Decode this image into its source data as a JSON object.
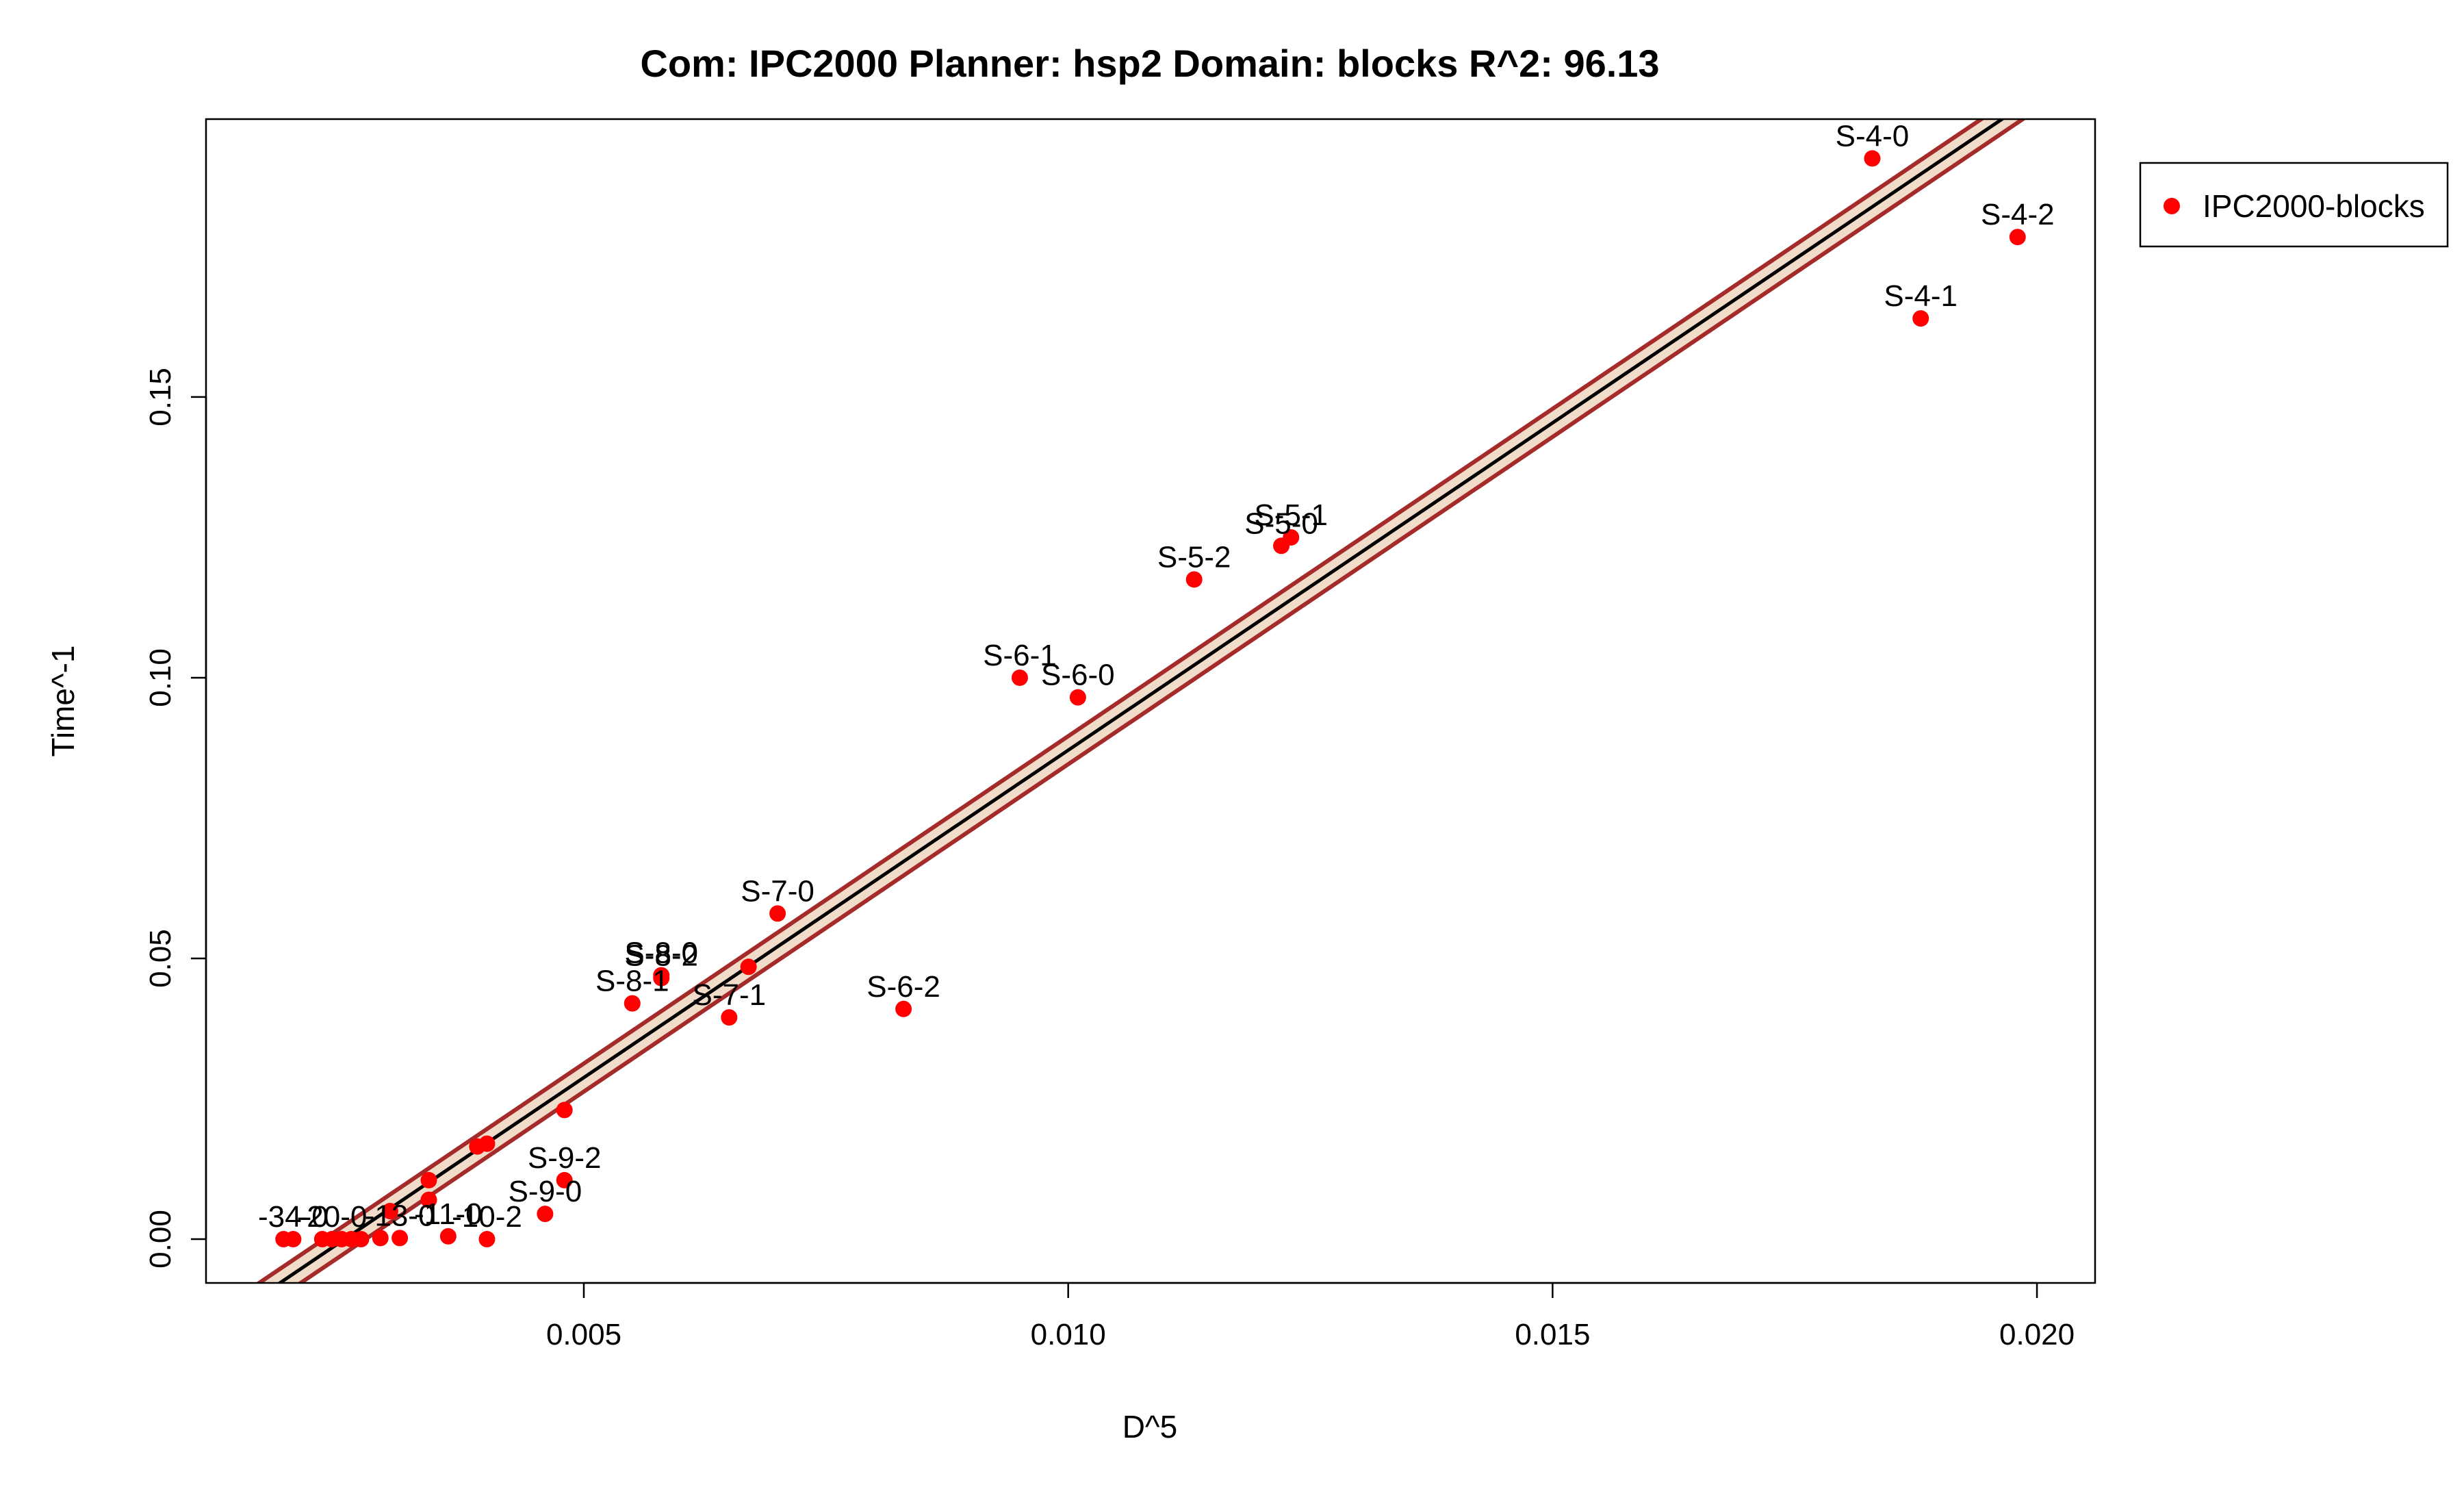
{
  "chart_data": {
    "type": "scatter",
    "title": "Com: IPC2000 Planner: hsp2 Domain: blocks R^2: 96.13",
    "xlabel": "D^5",
    "ylabel": "Time^-1",
    "xlim": [
      0.0011,
      0.0206
    ],
    "ylim": [
      -0.0078,
      0.1995
    ],
    "x_ticks": [
      0.005,
      0.01,
      0.015,
      0.02
    ],
    "x_tick_labels": [
      "0.005",
      "0.010",
      "0.015",
      "0.020"
    ],
    "y_ticks": [
      0.0,
      0.05,
      0.1,
      0.15
    ],
    "y_tick_labels": [
      "0.00",
      "0.05",
      "0.10",
      "0.15"
    ],
    "grid": false,
    "legend": {
      "position": "top-right-outside",
      "entries": [
        "IPC2000-blocks"
      ]
    },
    "colors": {
      "points": "#ff0000",
      "fit_line": "#000000",
      "band_fill": "#f0dcc8",
      "band_edge": "#a52a2a"
    },
    "fit": {
      "x": [
        0.0011,
        0.0206
      ],
      "y": [
        -0.0167,
        0.2107
      ],
      "band_halfwidth": 0.0025
    },
    "series": [
      {
        "name": "IPC2000-blocks",
        "points": [
          {
            "x": 0.0183,
            "y": 0.1925,
            "label": "S-4-0"
          },
          {
            "x": 0.0198,
            "y": 0.1785,
            "label": "S-4-2"
          },
          {
            "x": 0.0188,
            "y": 0.164,
            "label": "S-4-1"
          },
          {
            "x": 0.0123,
            "y": 0.125,
            "label": "S-5-1"
          },
          {
            "x": 0.0122,
            "y": 0.1235,
            "label": "S-5-0"
          },
          {
            "x": 0.0113,
            "y": 0.1175,
            "label": "S-5-2"
          },
          {
            "x": 0.0095,
            "y": 0.1,
            "label": "S-6-1"
          },
          {
            "x": 0.0101,
            "y": 0.0965,
            "label": "S-6-0"
          },
          {
            "x": 0.007,
            "y": 0.058,
            "label": "S-7-0"
          },
          {
            "x": 0.0067,
            "y": 0.0485,
            "label": ""
          },
          {
            "x": 0.0058,
            "y": 0.047,
            "label": "S-8-0"
          },
          {
            "x": 0.0058,
            "y": 0.0465,
            "label": "S-8-2"
          },
          {
            "x": 0.0055,
            "y": 0.042,
            "label": "S-8-1"
          },
          {
            "x": 0.0065,
            "y": 0.0395,
            "label": "S-7-1"
          },
          {
            "x": 0.0083,
            "y": 0.041,
            "label": "S-6-2"
          },
          {
            "x": 0.0048,
            "y": 0.023,
            "label": ""
          },
          {
            "x": 0.004,
            "y": 0.017,
            "label": ""
          },
          {
            "x": 0.0039,
            "y": 0.0165,
            "label": ""
          },
          {
            "x": 0.0034,
            "y": 0.0105,
            "label": ""
          },
          {
            "x": 0.0034,
            "y": 0.007,
            "label": ""
          },
          {
            "x": 0.0048,
            "y": 0.0105,
            "label": "S-9-2"
          },
          {
            "x": 0.0046,
            "y": 0.0045,
            "label": "S-9-0"
          },
          {
            "x": 0.003,
            "y": 0.005,
            "label": ""
          },
          {
            "x": 0.0036,
            "y": 0.0005,
            "label": "-11-0"
          },
          {
            "x": 0.004,
            "y": 0.0,
            "label": "-10-2"
          },
          {
            "x": 0.0031,
            "y": 0.0002,
            "label": "-13-0"
          },
          {
            "x": 0.0029,
            "y": 0.0002,
            "label": ""
          },
          {
            "x": 0.0027,
            "y": 0.0,
            "label": ""
          },
          {
            "x": 0.0026,
            "y": 0.0,
            "label": ""
          },
          {
            "x": 0.0025,
            "y": 0.0,
            "label": ""
          },
          {
            "x": 0.0024,
            "y": 0.0,
            "label": "-20-0"
          },
          {
            "x": 0.0023,
            "y": 0.0,
            "label": ""
          },
          {
            "x": 0.002,
            "y": 0.0,
            "label": "-34-0"
          },
          {
            "x": 0.0019,
            "y": 0.0,
            "label": ""
          }
        ]
      }
    ]
  }
}
